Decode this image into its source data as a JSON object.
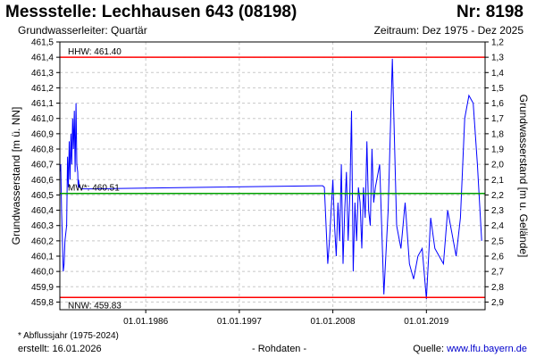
{
  "header": {
    "title": "Messstelle: Lechhausen 643 (08198)",
    "nr": "Nr: 8198",
    "aquifer": "Grundwasserleiter: Quartär",
    "period": "Zeitraum: Dez 1975 - Dez 2025"
  },
  "footer": {
    "note": "* Abflussjahr (1975-2024)",
    "created": "erstellt:  16.01.2026",
    "raw": "- Rohdaten -",
    "source_label": "Quelle:",
    "source_link": "www.lfu.bayern.de"
  },
  "chart_data": {
    "type": "line",
    "ylabel": "Grundwasserstand [m ü. NN]",
    "ylabel_right": "Grundwasserstand [m u. Gelände]",
    "ylim": [
      459.75,
      461.5
    ],
    "y_ticks": [
      "461,5",
      "461,4",
      "461,3",
      "461,2",
      "461,1",
      "461,0",
      "460,9",
      "460,8",
      "460,7",
      "460,6",
      "460,5",
      "460,4",
      "460,3",
      "460,2",
      "460,1",
      "460,0",
      "459,9",
      "459,8"
    ],
    "y2_ticks": [
      "1,2",
      "1,3",
      "1,4",
      "1,5",
      "1,6",
      "1,7",
      "1,8",
      "1,9",
      "2,0",
      "2,1",
      "2,2",
      "2,3",
      "2,4",
      "2,5",
      "2,6",
      "2,7",
      "2,8",
      "2,9"
    ],
    "xlim": [
      1975.9,
      2025.9
    ],
    "x_ticks": [
      {
        "label": "01.01.1986",
        "year": 1986.0
      },
      {
        "label": "01.01.1997",
        "year": 1997.0
      },
      {
        "label": "01.01.2008",
        "year": 2008.0
      },
      {
        "label": "01.01.2019",
        "year": 2019.0
      }
    ],
    "grid": true,
    "reference_lines": [
      {
        "label": "HHW: 461.40",
        "value": 461.4,
        "color": "#ff0000"
      },
      {
        "label": "MW*: 460.51",
        "value": 460.51,
        "color": "#00a000"
      },
      {
        "label": "NNW: 459.83",
        "value": 459.83,
        "color": "#ff0000"
      }
    ],
    "series": [
      {
        "color": "#0000ff",
        "x": [
          1975.9,
          1976.0,
          1976.1,
          1976.3,
          1976.4,
          1976.5,
          1976.7,
          1976.8,
          1976.9,
          1977.0,
          1977.1,
          1977.2,
          1977.3,
          1977.4,
          1977.5,
          1977.6,
          1977.7,
          1977.8,
          1977.9,
          1978.0,
          1978.05,
          1978.1,
          1978.2,
          1978.3,
          1978.4,
          1978.5,
          1978.6,
          1978.7,
          1978.8,
          1978.9,
          1979.0,
          1979.1,
          1979.2,
          1979.3,
          1979.4,
          1979.5,
          1979.6,
          1980.0,
          2006.5,
          2006.8,
          2007.0,
          2007.2,
          2007.4,
          2007.6,
          2007.8,
          2008.0,
          2008.2,
          2008.4,
          2008.6,
          2008.8,
          2009.0,
          2009.2,
          2009.4,
          2009.6,
          2009.8,
          2010.0,
          2010.2,
          2010.4,
          2010.6,
          2010.8,
          2011.0,
          2011.2,
          2011.4,
          2011.6,
          2011.8,
          2012.0,
          2012.2,
          2012.4,
          2012.6,
          2012.8,
          2013.0,
          2013.5,
          2014.0,
          2014.5,
          2015.0,
          2015.5,
          2016.0,
          2016.5,
          2017.0,
          2017.5,
          2018.0,
          2018.5,
          2019.0,
          2019.5,
          2020.0,
          2020.5,
          2021.0,
          2021.5,
          2022.0,
          2022.5,
          2023.0,
          2023.5,
          2024.0,
          2024.5,
          2025.0,
          2025.5
        ],
        "y": [
          460.65,
          460.7,
          460.4,
          460.0,
          460.05,
          460.2,
          460.3,
          460.75,
          460.55,
          460.85,
          460.6,
          460.9,
          460.7,
          461.0,
          460.8,
          461.05,
          460.65,
          461.1,
          460.7,
          460.65,
          460.55,
          460.6,
          460.55,
          460.55,
          460.54,
          460.54,
          460.54,
          460.54,
          460.54,
          460.54,
          460.54,
          460.54,
          460.54,
          460.54,
          460.54,
          460.54,
          460.54,
          460.54,
          460.56,
          460.56,
          460.55,
          460.3,
          460.05,
          460.2,
          460.4,
          460.6,
          460.3,
          460.1,
          460.45,
          460.2,
          460.7,
          460.05,
          460.4,
          460.65,
          460.2,
          460.5,
          461.05,
          460.0,
          460.45,
          460.2,
          460.55,
          460.45,
          460.15,
          460.55,
          460.35,
          460.85,
          460.4,
          460.3,
          460.8,
          460.45,
          460.55,
          460.7,
          459.85,
          460.4,
          461.39,
          460.3,
          460.15,
          460.45,
          460.05,
          459.95,
          460.1,
          460.15,
          459.82,
          460.35,
          460.15,
          460.1,
          460.05,
          460.4,
          460.25,
          460.1,
          460.35,
          461.0,
          461.15,
          461.1,
          460.7,
          460.2
        ]
      }
    ]
  }
}
